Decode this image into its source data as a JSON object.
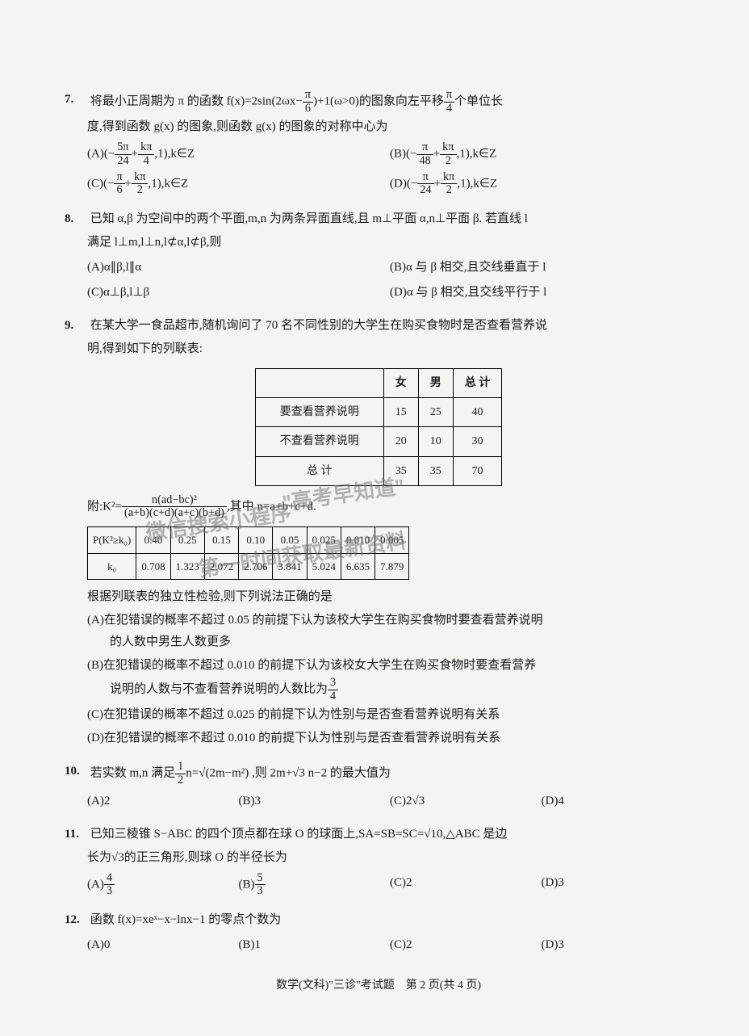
{
  "q7": {
    "num": "7.",
    "stem_a": "将最小正周期为 π 的函数 f(x)=2sin(2ωx−",
    "frac_pi6_num": "π",
    "frac_pi6_den": "6",
    "stem_b": ")+1(ω>0)的图象向左平移",
    "frac_pi4_num": "π",
    "frac_pi4_den": "4",
    "stem_c": "个单位长",
    "stem_d": "度,得到函数 g(x) 的图象,则函数 g(x) 的图象的对称中心为",
    "optA_pre": "(A)(−",
    "optA_num": "5π",
    "optA_den": "24",
    "optA_mid": "+",
    "optA_num2": "kπ",
    "optA_den2": "4",
    "optA_post": ",1),k∈Z",
    "optB_pre": "(B)(−",
    "optB_num": "π",
    "optB_den": "48",
    "optB_mid": "+",
    "optB_num2": "kπ",
    "optB_den2": "2",
    "optB_post": ",1),k∈Z",
    "optC_pre": "(C)(−",
    "optC_num": "π",
    "optC_den": "6",
    "optC_mid": "+",
    "optC_num2": "kπ",
    "optC_den2": "2",
    "optC_post": ",1),k∈Z",
    "optD_pre": "(D)(−",
    "optD_num": "π",
    "optD_den": "24",
    "optD_mid": "+",
    "optD_num2": "kπ",
    "optD_den2": "2",
    "optD_post": ",1),k∈Z"
  },
  "q8": {
    "num": "8.",
    "stem": "已知 α,β 为空间中的两个平面,m,n 为两条异面直线,且 m⊥平面 α,n⊥平面 β. 若直线 l",
    "stem2": "满足 l⊥m,l⊥n,l⊄α,l⊄β,则",
    "optA": "(A)α∥β,l∥α",
    "optB": "(B)α 与 β 相交,且交线垂直于 l",
    "optC": "(C)α⊥β,l⊥β",
    "optD": "(D)α 与 β 相交,且交线平行于 l"
  },
  "q9": {
    "num": "9.",
    "stem": "在某大学一食品超市,随机询问了 70 名不同性别的大学生在购买食物时是否查看营养说",
    "stem2": "明,得到如下的列联表:",
    "table": {
      "cols": [
        "",
        "女",
        "男",
        "总 计"
      ],
      "rows": [
        [
          "要查看营养说明",
          "15",
          "25",
          "40"
        ],
        [
          "不查看营养说明",
          "20",
          "10",
          "30"
        ],
        [
          "总 计",
          "35",
          "35",
          "70"
        ]
      ]
    },
    "formula_pre": "附:K²=",
    "formula_num": "n(ad−bc)²",
    "formula_den": "(a+b)(c+d)(a+c)(b+d)",
    "formula_post": ",其中 n=a+b+c+d.",
    "ktable": {
      "row1_head": "P(K²≥k₀)",
      "row1": [
        "0.40",
        "0.25",
        "0.15",
        "0.10",
        "0.05",
        "0.025",
        "0.010",
        "0.005"
      ],
      "row2_head": "k₀",
      "row2": [
        "0.708",
        "1.323",
        "2.072",
        "2.706",
        "3.841",
        "5.024",
        "6.635",
        "7.879"
      ]
    },
    "follow": "根据列联表的独立性检验,则下列说法正确的是",
    "optA1": "(A)在犯错误的概率不超过 0.05 的前提下认为该校大学生在购买食物时要查看营养说明",
    "optA2": "的人数中男生人数更多",
    "optB1": "(B)在犯错误的概率不超过 0.010 的前提下认为该校女大学生在购买食物时要查看营养",
    "optB2_pre": "说明的人数与不查看营养说明的人数比为",
    "optB2_num": "3",
    "optB2_den": "4",
    "optC": "(C)在犯错误的概率不超过 0.025 的前提下认为性别与是否查看营养说明有关系",
    "optD": "(D)在犯错误的概率不超过 0.010 的前提下认为性别与是否查看营养说明有关系"
  },
  "q10": {
    "num": "10.",
    "stem_a": "若实数 m,n 满足",
    "frac_num": "1",
    "frac_den": "2",
    "stem_b": "n=√(2m−m²) ,则 2m+√3 n−2 的最大值为",
    "optA": "(A)2",
    "optB": "(B)3",
    "optC": "(C)2√3",
    "optD": "(D)4"
  },
  "q11": {
    "num": "11.",
    "stem": "已知三棱锥 S−ABC 的四个顶点都在球 O 的球面上,SA=SB=SC=√10,△ABC 是边",
    "stem2": "长为√3的正三角形,则球 O 的半径长为",
    "optA_pre": "(A)",
    "optA_num": "4",
    "optA_den": "3",
    "optB_pre": "(B)",
    "optB_num": "5",
    "optB_den": "3",
    "optC": "(C)2",
    "optD": "(D)3"
  },
  "q12": {
    "num": "12.",
    "stem": "函数 f(x)=xeˣ−x−lnx−1 的零点个数为",
    "optA": "(A)0",
    "optB": "(B)1",
    "optC": "(C)2",
    "optD": "(D)3"
  },
  "footer": "数学(文科)\"三诊\"考试题　第 2 页(共 4 页)",
  "watermark": {
    "line1": "\"高考早知道\"",
    "line2": "微信搜索小程序",
    "line3": "第一时间获取最新资料"
  }
}
